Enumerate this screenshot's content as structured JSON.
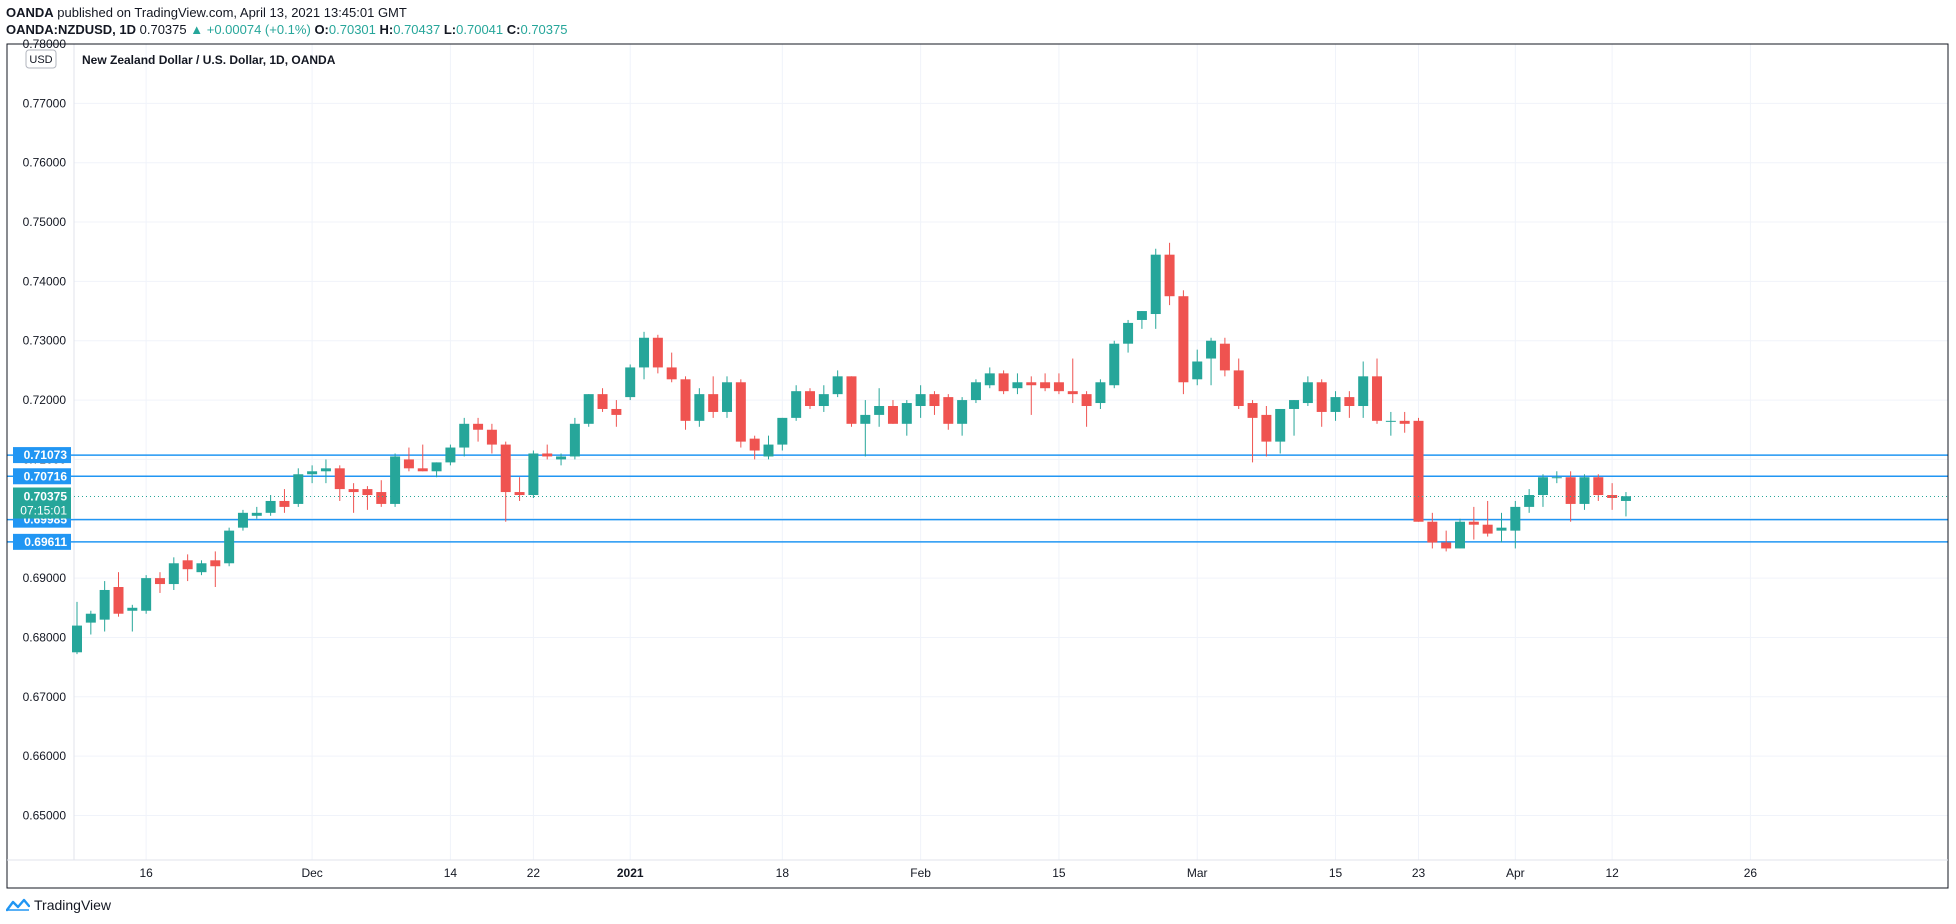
{
  "header": {
    "publisher": "OANDA",
    "published_text": "published on TradingView.com, April 13, 2021 13:45:01 GMT",
    "symbol": "OANDA:NZDUSD, 1D",
    "last": "0.70375",
    "change": "▲ +0.00074 (+0.1%)",
    "o_label": "O:",
    "o_value": "0.70301",
    "h_label": "H:",
    "h_value": "0.70437",
    "l_label": "L:",
    "l_value": "0.70041",
    "c_label": "C:",
    "c_value": "0.70375"
  },
  "footer": {
    "brand": "TradingView"
  },
  "colors": {
    "up": "#26a69a",
    "down": "#ef5350",
    "level": "#2196f3",
    "grid": "#f0f3fa",
    "frame": "#131722"
  },
  "chart_data": {
    "type": "candlestick",
    "title": "New Zealand Dollar / U.S. Dollar, 1D, OANDA",
    "currency": "USD",
    "ylim": [
      0.6425,
      0.78
    ],
    "y_ticks": [
      "0.78000",
      "0.77000",
      "0.76000",
      "0.75000",
      "0.74000",
      "0.73000",
      "0.72000",
      "0.71000",
      "0.70000",
      "0.69000",
      "0.68000",
      "0.67000",
      "0.66000",
      "0.65000"
    ],
    "y_tick_values": [
      0.78,
      0.77,
      0.76,
      0.75,
      0.74,
      0.73,
      0.72,
      0.71,
      0.7,
      0.69,
      0.68,
      0.67,
      0.66,
      0.65
    ],
    "x_ticks": [
      {
        "label": "16",
        "bar": 5
      },
      {
        "label": "Dec",
        "bar": 17
      },
      {
        "label": "14",
        "bar": 27
      },
      {
        "label": "22",
        "bar": 33
      },
      {
        "label": "2021",
        "bar": 40
      },
      {
        "label": "18",
        "bar": 51
      },
      {
        "label": "Feb",
        "bar": 61
      },
      {
        "label": "15",
        "bar": 71
      },
      {
        "label": "Mar",
        "bar": 81
      },
      {
        "label": "15",
        "bar": 91
      },
      {
        "label": "23",
        "bar": 97
      },
      {
        "label": "Apr",
        "bar": 104
      },
      {
        "label": "12",
        "bar": 111
      },
      {
        "label": "26",
        "bar": 121
      }
    ],
    "levels": [
      {
        "value": 0.71073,
        "label": "0.71073"
      },
      {
        "value": 0.70716,
        "label": "0.70716"
      },
      {
        "value": 0.69985,
        "label": "0.69985"
      },
      {
        "value": 0.69611,
        "label": "0.69611"
      }
    ],
    "last_price": {
      "value": 0.70375,
      "label": "0.70375",
      "countdown": "07:15:01"
    },
    "candles": [
      [
        0.6775,
        0.686,
        0.6772,
        0.682
      ],
      [
        0.6825,
        0.6845,
        0.6805,
        0.684
      ],
      [
        0.683,
        0.6895,
        0.681,
        0.688
      ],
      [
        0.6885,
        0.691,
        0.6835,
        0.684
      ],
      [
        0.6845,
        0.6855,
        0.681,
        0.685
      ],
      [
        0.6845,
        0.6905,
        0.684,
        0.69
      ],
      [
        0.69,
        0.691,
        0.6875,
        0.689
      ],
      [
        0.689,
        0.6935,
        0.688,
        0.6925
      ],
      [
        0.693,
        0.694,
        0.6895,
        0.6915
      ],
      [
        0.691,
        0.693,
        0.6905,
        0.6925
      ],
      [
        0.693,
        0.6945,
        0.6885,
        0.692
      ],
      [
        0.6925,
        0.6985,
        0.692,
        0.698
      ],
      [
        0.6985,
        0.7015,
        0.698,
        0.701
      ],
      [
        0.7005,
        0.702,
        0.7,
        0.701
      ],
      [
        0.701,
        0.704,
        0.7005,
        0.703
      ],
      [
        0.703,
        0.705,
        0.701,
        0.702
      ],
      [
        0.7025,
        0.7085,
        0.702,
        0.7075
      ],
      [
        0.7075,
        0.709,
        0.706,
        0.708
      ],
      [
        0.708,
        0.71,
        0.706,
        0.7085
      ],
      [
        0.7085,
        0.709,
        0.703,
        0.705
      ],
      [
        0.705,
        0.706,
        0.701,
        0.7045
      ],
      [
        0.705,
        0.7055,
        0.7015,
        0.704
      ],
      [
        0.7045,
        0.7065,
        0.702,
        0.7025
      ],
      [
        0.7025,
        0.711,
        0.702,
        0.7105
      ],
      [
        0.71,
        0.712,
        0.708,
        0.7085
      ],
      [
        0.7085,
        0.7125,
        0.708,
        0.708
      ],
      [
        0.708,
        0.7095,
        0.707,
        0.7095
      ],
      [
        0.7095,
        0.7125,
        0.709,
        0.712
      ],
      [
        0.712,
        0.717,
        0.7105,
        0.716
      ],
      [
        0.716,
        0.717,
        0.713,
        0.715
      ],
      [
        0.715,
        0.716,
        0.711,
        0.7125
      ],
      [
        0.7125,
        0.713,
        0.6995,
        0.7045
      ],
      [
        0.7045,
        0.707,
        0.703,
        0.704
      ],
      [
        0.704,
        0.7115,
        0.7035,
        0.711
      ],
      [
        0.711,
        0.7125,
        0.71,
        0.7105
      ],
      [
        0.71,
        0.711,
        0.709,
        0.7105
      ],
      [
        0.7105,
        0.717,
        0.71,
        0.716
      ],
      [
        0.716,
        0.721,
        0.7155,
        0.721
      ],
      [
        0.721,
        0.722,
        0.718,
        0.7185
      ],
      [
        0.7185,
        0.72,
        0.7155,
        0.7175
      ],
      [
        0.7205,
        0.726,
        0.72,
        0.7255
      ],
      [
        0.7255,
        0.7315,
        0.7235,
        0.7305
      ],
      [
        0.7305,
        0.731,
        0.7245,
        0.7255
      ],
      [
        0.7255,
        0.728,
        0.723,
        0.7235
      ],
      [
        0.7235,
        0.724,
        0.715,
        0.7165
      ],
      [
        0.7165,
        0.722,
        0.7155,
        0.721
      ],
      [
        0.721,
        0.724,
        0.717,
        0.718
      ],
      [
        0.718,
        0.724,
        0.717,
        0.723
      ],
      [
        0.723,
        0.7235,
        0.712,
        0.713
      ],
      [
        0.7135,
        0.714,
        0.71,
        0.7115
      ],
      [
        0.7105,
        0.714,
        0.71,
        0.7125
      ],
      [
        0.7125,
        0.717,
        0.7115,
        0.717
      ],
      [
        0.717,
        0.7225,
        0.7165,
        0.7215
      ],
      [
        0.7215,
        0.722,
        0.7185,
        0.719
      ],
      [
        0.719,
        0.7225,
        0.718,
        0.721
      ],
      [
        0.721,
        0.725,
        0.7205,
        0.724
      ],
      [
        0.724,
        0.724,
        0.7155,
        0.716
      ],
      [
        0.716,
        0.72,
        0.7105,
        0.7175
      ],
      [
        0.7175,
        0.722,
        0.7155,
        0.719
      ],
      [
        0.719,
        0.72,
        0.716,
        0.716
      ],
      [
        0.716,
        0.72,
        0.714,
        0.7195
      ],
      [
        0.719,
        0.7225,
        0.717,
        0.721
      ],
      [
        0.721,
        0.7215,
        0.7175,
        0.719
      ],
      [
        0.7205,
        0.721,
        0.715,
        0.716
      ],
      [
        0.716,
        0.7205,
        0.714,
        0.72
      ],
      [
        0.72,
        0.7235,
        0.7195,
        0.723
      ],
      [
        0.7225,
        0.7255,
        0.722,
        0.7245
      ],
      [
        0.7245,
        0.725,
        0.721,
        0.7215
      ],
      [
        0.722,
        0.7245,
        0.721,
        0.723
      ],
      [
        0.723,
        0.724,
        0.7175,
        0.7225
      ],
      [
        0.723,
        0.7245,
        0.7215,
        0.722
      ],
      [
        0.723,
        0.7245,
        0.721,
        0.7215
      ],
      [
        0.7215,
        0.727,
        0.7195,
        0.721
      ],
      [
        0.721,
        0.7215,
        0.7155,
        0.719
      ],
      [
        0.7195,
        0.7235,
        0.7185,
        0.723
      ],
      [
        0.7225,
        0.73,
        0.722,
        0.7295
      ],
      [
        0.7295,
        0.7335,
        0.728,
        0.733
      ],
      [
        0.7335,
        0.735,
        0.732,
        0.735
      ],
      [
        0.7345,
        0.7455,
        0.732,
        0.7445
      ],
      [
        0.7445,
        0.7465,
        0.736,
        0.7375
      ],
      [
        0.7375,
        0.7385,
        0.721,
        0.723
      ],
      [
        0.7235,
        0.7285,
        0.7225,
        0.7265
      ],
      [
        0.727,
        0.7305,
        0.7225,
        0.73
      ],
      [
        0.7295,
        0.7305,
        0.724,
        0.725
      ],
      [
        0.725,
        0.727,
        0.7185,
        0.719
      ],
      [
        0.7195,
        0.72,
        0.7095,
        0.717
      ],
      [
        0.7175,
        0.719,
        0.7105,
        0.713
      ],
      [
        0.713,
        0.7185,
        0.711,
        0.7185
      ],
      [
        0.7185,
        0.72,
        0.714,
        0.72
      ],
      [
        0.7195,
        0.724,
        0.719,
        0.723
      ],
      [
        0.723,
        0.7235,
        0.7155,
        0.718
      ],
      [
        0.718,
        0.7215,
        0.7165,
        0.7205
      ],
      [
        0.7205,
        0.7215,
        0.717,
        0.719
      ],
      [
        0.719,
        0.7265,
        0.717,
        0.724
      ],
      [
        0.724,
        0.727,
        0.716,
        0.7165
      ],
      [
        0.7165,
        0.718,
        0.714,
        0.7165
      ],
      [
        0.7165,
        0.718,
        0.7145,
        0.716
      ],
      [
        0.7165,
        0.717,
        0.6995,
        0.6995
      ],
      [
        0.6995,
        0.701,
        0.695,
        0.696
      ],
      [
        0.696,
        0.698,
        0.6945,
        0.695
      ],
      [
        0.695,
        0.7,
        0.695,
        0.6995
      ],
      [
        0.6995,
        0.702,
        0.6965,
        0.699
      ],
      [
        0.699,
        0.703,
        0.697,
        0.6975
      ],
      [
        0.698,
        0.701,
        0.696,
        0.6985
      ],
      [
        0.698,
        0.703,
        0.695,
        0.702
      ],
      [
        0.702,
        0.705,
        0.701,
        0.704
      ],
      [
        0.704,
        0.7075,
        0.702,
        0.707
      ],
      [
        0.707,
        0.708,
        0.706,
        0.707
      ],
      [
        0.707,
        0.708,
        0.6995,
        0.7025
      ],
      [
        0.7025,
        0.7075,
        0.7015,
        0.707
      ],
      [
        0.707,
        0.7075,
        0.703,
        0.704
      ],
      [
        0.704,
        0.706,
        0.7015,
        0.7035
      ],
      [
        0.703,
        0.7045,
        0.7004,
        0.7038
      ]
    ]
  }
}
